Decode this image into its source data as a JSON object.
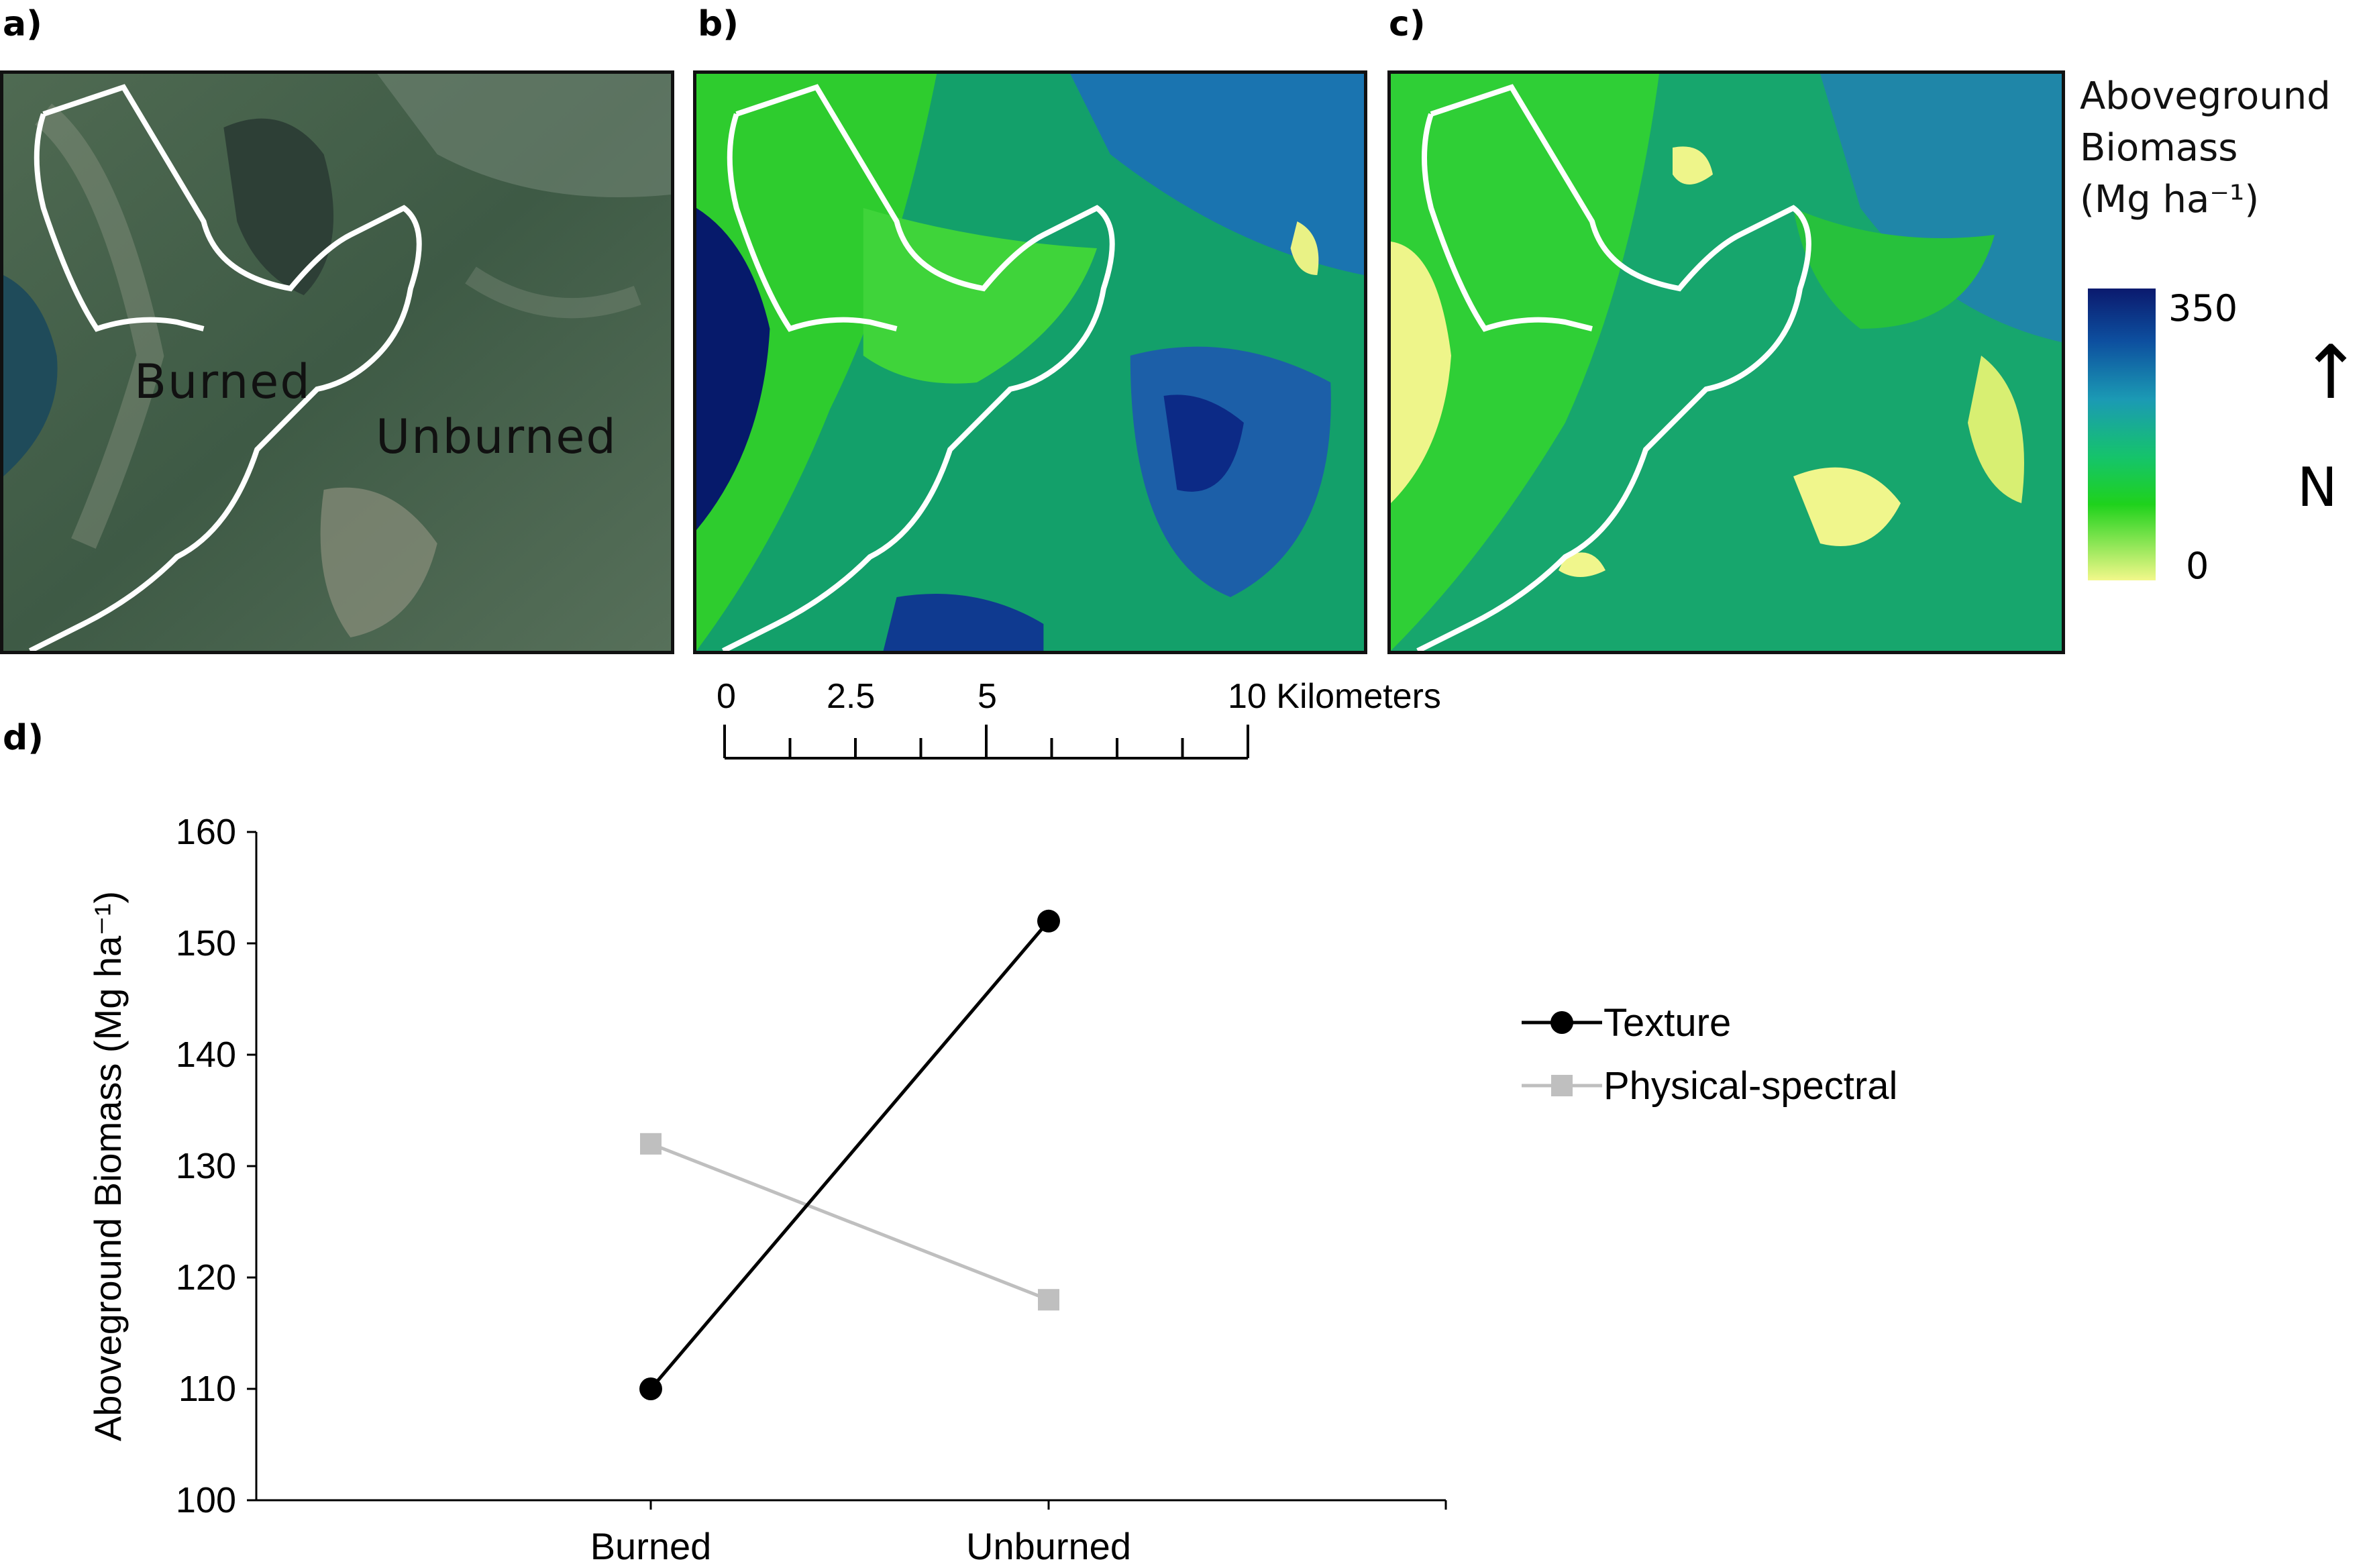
{
  "panels": {
    "a": {
      "letter": "a)",
      "labels": {
        "burned": "Burned",
        "unburned": "Unburned"
      }
    },
    "b": {
      "letter": "b)"
    },
    "c": {
      "letter": "c)"
    },
    "d": {
      "letter": "d)"
    }
  },
  "map_legend": {
    "title_line1": "Aboveground",
    "title_line2": "Biomass",
    "title_line3": "(Mg ha⁻¹)",
    "max_label": "350",
    "min_label": "0",
    "north_label": "N",
    "north_arrow": "↑"
  },
  "scale_bar": {
    "labels": [
      "0",
      "2.5",
      "5",
      "10 Kilometers"
    ],
    "tick_values_km": [
      0,
      1.25,
      2.5,
      3.75,
      5,
      6.25,
      7.5,
      8.75,
      10
    ]
  },
  "colors": {
    "texture": "#000000",
    "physical_spectral": "#bfbfbf",
    "boundary": "#ffffff",
    "biomass_high": "#0b1a6e",
    "biomass_mid": "#15c46a",
    "biomass_low": "#f2f88a"
  },
  "chart_data": {
    "type": "line",
    "categories": [
      "Burned",
      "Unburned"
    ],
    "ylabel": "Aboveground Biomass (Mg ha⁻¹)",
    "ylim": [
      100,
      160
    ],
    "yticks": [
      "100",
      "110",
      "120",
      "130",
      "140",
      "150",
      "160"
    ],
    "grid": false,
    "legend_position": "right",
    "series": [
      {
        "name": "Texture",
        "values": [
          110,
          152
        ],
        "marker": "circle",
        "color": "#000000"
      },
      {
        "name": "Physical-spectral",
        "values": [
          132,
          118
        ],
        "marker": "square",
        "color": "#bfbfbf"
      }
    ]
  }
}
